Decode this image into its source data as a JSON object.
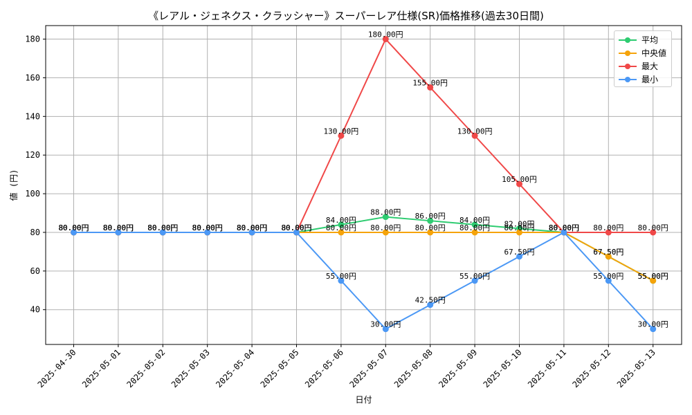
{
  "chart_data": {
    "type": "line",
    "title": "《レアル・ジェネクス・クラッシャー》スーパーレア仕様(SR)価格推移(過去30日間)",
    "xlabel": "日付",
    "ylabel": "値 (円)",
    "ylim": [
      22,
      187
    ],
    "yticks": [
      40,
      60,
      80,
      100,
      120,
      140,
      160,
      180
    ],
    "grid": true,
    "legend_position": "top-right",
    "label_suffix": "円",
    "x": [
      "2025-04-30",
      "2025-05-01",
      "2025-05-02",
      "2025-05-03",
      "2025-05-04",
      "2025-05-05",
      "2025-05-06",
      "2025-05-07",
      "2025-05-08",
      "2025-05-09",
      "2025-05-10",
      "2025-05-11",
      "2025-05-12",
      "2025-05-13"
    ],
    "series": [
      {
        "name": "平均",
        "color": "#2ecc71",
        "values": [
          80,
          80,
          80,
          80,
          80,
          80,
          84,
          88,
          86,
          84,
          82,
          80,
          67.5,
          55
        ]
      },
      {
        "name": "中央値",
        "color": "#f5a30a",
        "values": [
          80,
          80,
          80,
          80,
          80,
          80,
          80,
          80,
          80,
          80,
          80,
          80,
          67.5,
          55
        ]
      },
      {
        "name": "最大",
        "color": "#f04848",
        "values": [
          80,
          80,
          80,
          80,
          80,
          80,
          130,
          180,
          155,
          130,
          105,
          80,
          80,
          80
        ]
      },
      {
        "name": "最小",
        "color": "#4b98f5",
        "values": [
          80,
          80,
          80,
          80,
          80,
          80,
          55,
          30,
          42.5,
          55,
          67.5,
          80,
          55,
          30
        ]
      }
    ]
  }
}
